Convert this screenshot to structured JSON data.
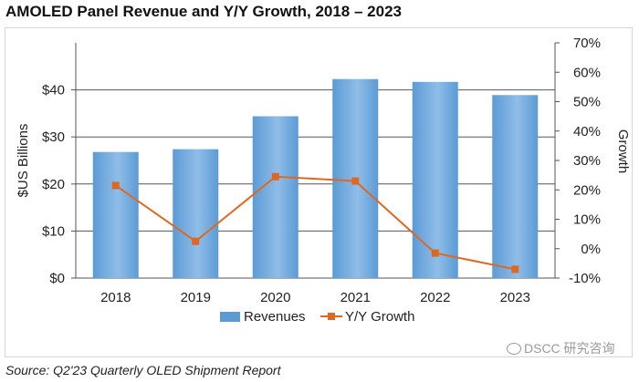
{
  "title": "AMOLED Panel Revenue and Y/Y Growth, 2018 – 2023",
  "source": "Source: Q2'23 Quarterly OLED Shipment Report",
  "watermark": "DSCC 研究咨询",
  "colors": {
    "bar": "#5b9bd5",
    "bar_light": "#8fbde8",
    "line": "#e0671f",
    "grid": "#555555"
  },
  "chart_data": {
    "type": "bar",
    "title": "AMOLED Panel Revenue and Y/Y Growth, 2018 – 2023",
    "categories": [
      "2018",
      "2019",
      "2020",
      "2021",
      "2022",
      "2023"
    ],
    "series": [
      {
        "name": "Revenues",
        "type": "bar",
        "axis": "left",
        "values": [
          26.8,
          27.4,
          34.4,
          42.3,
          41.7,
          38.9
        ]
      },
      {
        "name": "Y/Y Growth",
        "type": "line",
        "axis": "right",
        "values": [
          21.5,
          2.5,
          24.5,
          23.0,
          -1.5,
          -7.0
        ]
      }
    ],
    "left_axis": {
      "label": "$US Billions",
      "ylim": [
        0,
        50
      ],
      "ticks": [
        0,
        10,
        20,
        30,
        40
      ],
      "tick_labels": [
        "$0",
        "$10",
        "$20",
        "$30",
        "$40"
      ]
    },
    "right_axis": {
      "label": "Growth",
      "ylim": [
        -10,
        70
      ],
      "ticks": [
        -10,
        0,
        10,
        20,
        30,
        40,
        50,
        60,
        70
      ],
      "tick_labels": [
        "-10%",
        "0%",
        "10%",
        "20%",
        "30%",
        "40%",
        "50%",
        "60%",
        "70%"
      ]
    },
    "legend": {
      "position": "bottom",
      "entries": [
        "Revenues",
        "Y/Y Growth"
      ]
    },
    "grid": true
  }
}
